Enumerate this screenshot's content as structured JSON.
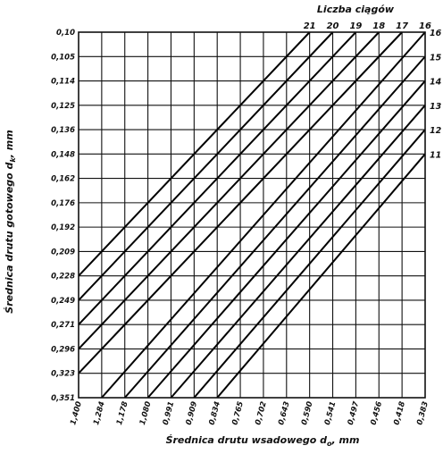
{
  "chart_data": {
    "type": "line",
    "top_title": "Liczba ciągów",
    "xlabel_prefix": "Średnica drutu wsadowego d",
    "xlabel_sub": "o",
    "xlabel_suffix": ", mm",
    "ylabel_prefix": "Średnica drutu gotowego d",
    "ylabel_sub": "k",
    "ylabel_suffix": ", mm",
    "x_ticks": [
      "1,400",
      "1,284",
      "1,178",
      "1,080",
      "0,991",
      "0,909",
      "0,834",
      "0,765",
      "0,702",
      "0,643",
      "0,590",
      "0,541",
      "0,497",
      "0,456",
      "0,418",
      "0,383"
    ],
    "y_ticks": [
      "0,10",
      "0,105",
      "0,114",
      "0,125",
      "0,136",
      "0,148",
      "0,162",
      "0,176",
      "0,192",
      "0,209",
      "0,228",
      "0,249",
      "0,271",
      "0,296",
      "0,323",
      "0,351"
    ],
    "top_ticks": [
      "21",
      "20",
      "19",
      "18",
      "17",
      "16"
    ],
    "right_ticks": [
      "16",
      "15",
      "14",
      "13",
      "12",
      "11"
    ],
    "series": [
      {
        "draws": 21,
        "x_start": "0,591",
        "y_start": "0,10",
        "x_end": "1,400",
        "y_end": "0,228"
      },
      {
        "draws": 20,
        "x_start": "0,541",
        "y_start": "0,10",
        "x_end": "1,400",
        "y_end": "0,249"
      },
      {
        "draws": 19,
        "x_start": "0,497",
        "y_start": "0,10",
        "x_end": "1,400",
        "y_end": "0,271"
      },
      {
        "draws": 18,
        "x_start": "0,456",
        "y_start": "0,10",
        "x_end": "1,400",
        "y_end": "0,296"
      },
      {
        "draws": 17,
        "x_start": "0,418",
        "y_start": "0,10",
        "x_end": "1,400",
        "y_end": "0,323"
      },
      {
        "draws": 16,
        "x_start": "0,383",
        "y_start": "0,10",
        "x_end": "1,284",
        "y_end": "0,351"
      },
      {
        "draws": 15,
        "x_start": "0,383",
        "y_start": "0,105",
        "x_end": "1,178",
        "y_end": "0,351"
      },
      {
        "draws": 14,
        "x_start": "0,383",
        "y_start": "0,114",
        "x_end": "1,080",
        "y_end": "0,351"
      },
      {
        "draws": 13,
        "x_start": "0,383",
        "y_start": "0,125",
        "x_end": "0,991",
        "y_end": "0,351"
      },
      {
        "draws": 12,
        "x_start": "0,383",
        "y_start": "0,136",
        "x_end": "0,909",
        "y_end": "0,351"
      },
      {
        "draws": 11,
        "x_start": "0,383",
        "y_start": "0,148",
        "x_end": "0,834",
        "y_end": "0,351"
      }
    ]
  }
}
